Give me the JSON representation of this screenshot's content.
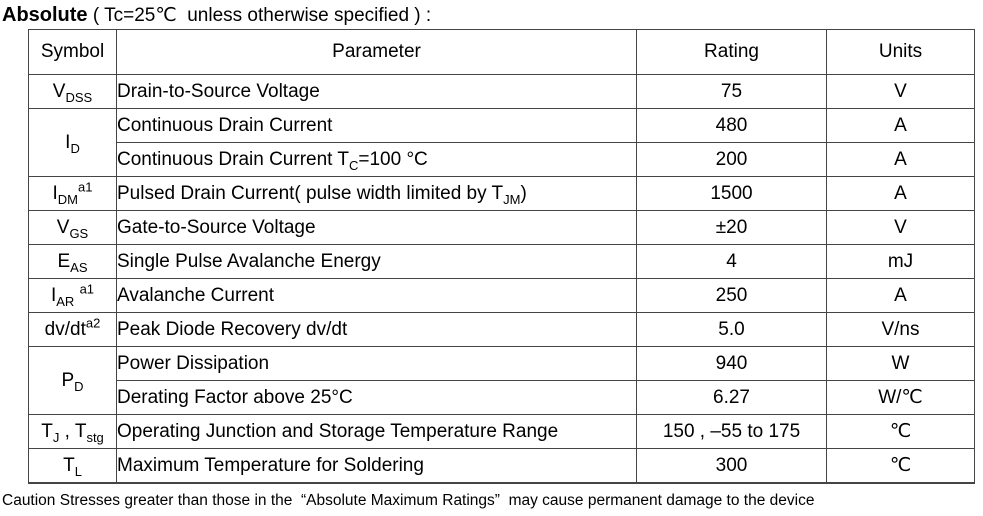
{
  "title": {
    "lead": "Absolute",
    "rest": " ( Tc=25℃  unless otherwise specified ) :"
  },
  "table": {
    "headers": [
      "Symbol",
      "Parameter",
      "Rating",
      "Units"
    ],
    "rows": [
      {
        "symbol": [
          [
            "n",
            "V"
          ],
          [
            "s",
            "DSS"
          ]
        ],
        "rowspan": 1,
        "parameter": [
          [
            "n",
            "Drain-to-Source Voltage"
          ]
        ],
        "rating": "75",
        "units": "V"
      },
      {
        "symbol": [
          [
            "n",
            "I"
          ],
          [
            "s",
            "D"
          ]
        ],
        "rowspan": 2,
        "parameter": [
          [
            "n",
            "Continuous Drain Current"
          ]
        ],
        "rating": "480",
        "units": "A"
      },
      {
        "symbol": null,
        "parameter": [
          [
            "n",
            "Continuous Drain Current T"
          ],
          [
            "s",
            "C"
          ],
          [
            "n",
            "=100 °C"
          ]
        ],
        "rating": "200",
        "units": "A"
      },
      {
        "symbol": [
          [
            "n",
            "I"
          ],
          [
            "s",
            "DM"
          ],
          [
            "p",
            "a1"
          ]
        ],
        "rowspan": 1,
        "parameter": [
          [
            "n",
            "Pulsed Drain Current( pulse width limited by T"
          ],
          [
            "s",
            "JM"
          ],
          [
            "n",
            ")"
          ]
        ],
        "rating": "1500",
        "units": "A"
      },
      {
        "symbol": [
          [
            "n",
            "V"
          ],
          [
            "s",
            "GS"
          ]
        ],
        "rowspan": 1,
        "parameter": [
          [
            "n",
            "Gate-to-Source Voltage"
          ]
        ],
        "rating": "±20",
        "units": "V"
      },
      {
        "symbol": [
          [
            "n",
            "E"
          ],
          [
            "s",
            "AS"
          ]
        ],
        "rowspan": 1,
        "parameter": [
          [
            "n",
            "Single Pulse Avalanche Energy"
          ]
        ],
        "rating": "4",
        "units": "mJ"
      },
      {
        "symbol": [
          [
            "n",
            "I"
          ],
          [
            "s",
            "AR"
          ],
          [
            "n",
            " "
          ],
          [
            "p",
            "a1"
          ]
        ],
        "rowspan": 1,
        "parameter": [
          [
            "n",
            "Avalanche Current"
          ]
        ],
        "rating": "250",
        "units": "A"
      },
      {
        "symbol": [
          [
            "n",
            "dv/dt"
          ],
          [
            "p",
            "a2"
          ]
        ],
        "rowspan": 1,
        "parameter": [
          [
            "n",
            "Peak Diode Recovery dv/dt"
          ]
        ],
        "rating": "5.0",
        "units": "V/ns"
      },
      {
        "symbol": [
          [
            "n",
            "P"
          ],
          [
            "s",
            "D"
          ]
        ],
        "rowspan": 2,
        "parameter": [
          [
            "n",
            "Power Dissipation"
          ]
        ],
        "rating": "940",
        "units": "W"
      },
      {
        "symbol": null,
        "parameter": [
          [
            "n",
            "Derating Factor above 25°C"
          ]
        ],
        "rating": "6.27",
        "units": "W/℃"
      },
      {
        "symbol": [
          [
            "n",
            "T"
          ],
          [
            "s",
            "J"
          ],
          [
            "n",
            " , T"
          ],
          [
            "s",
            "stg"
          ]
        ],
        "rowspan": 1,
        "parameter": [
          [
            "n",
            "Operating Junction and Storage Temperature Range"
          ]
        ],
        "rating": "150 , –55 to 175",
        "units": "℃"
      },
      {
        "symbol": [
          [
            "n",
            "T"
          ],
          [
            "s",
            "L"
          ]
        ],
        "rowspan": 1,
        "parameter": [
          [
            "n",
            "Maximum Temperature for Soldering"
          ]
        ],
        "rating": "300",
        "units": "℃"
      }
    ]
  },
  "footer": {
    "caution": "Caution Stresses greater than those in the  “Absolute Maximum Ratings”  may cause permanent damage to the device"
  }
}
